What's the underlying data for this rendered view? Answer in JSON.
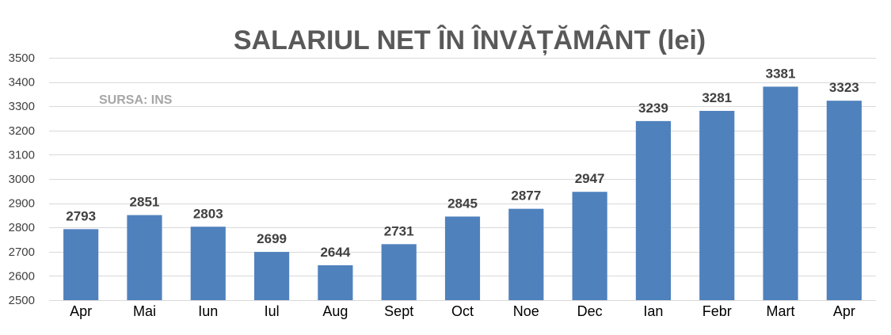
{
  "chart_data": {
    "type": "bar",
    "title": "SALARIUL NET ÎN ÎNVĂȚĂMÂNT (lei)",
    "source_note": "SURSA: INS",
    "categories": [
      "Apr",
      "Mai",
      "Iun",
      "Iul",
      "Aug",
      "Sept",
      "Oct",
      "Noe",
      "Dec",
      "Ian",
      "Febr",
      "Mart",
      "Apr"
    ],
    "series": [
      {
        "values": [
          2793,
          2851,
          2803,
          2699,
          2644,
          2731,
          2845,
          2877,
          2947,
          3239,
          3281,
          3381,
          3323
        ],
        "color": "#4f81bd"
      }
    ],
    "data_labels": [
      "2793",
      "2851",
      "2803",
      "2699",
      "2644",
      "2731",
      "2845",
      "2877",
      "2947",
      "3239",
      "3281",
      "3381",
      "3323"
    ],
    "ylim": [
      2500,
      3500
    ],
    "yticks": [
      "2500",
      "2600",
      "2700",
      "2800",
      "2900",
      "3000",
      "3100",
      "3200",
      "3300",
      "3400",
      "3500"
    ],
    "xlabel": "",
    "ylabel": "",
    "grid": true,
    "legend": "none"
  }
}
